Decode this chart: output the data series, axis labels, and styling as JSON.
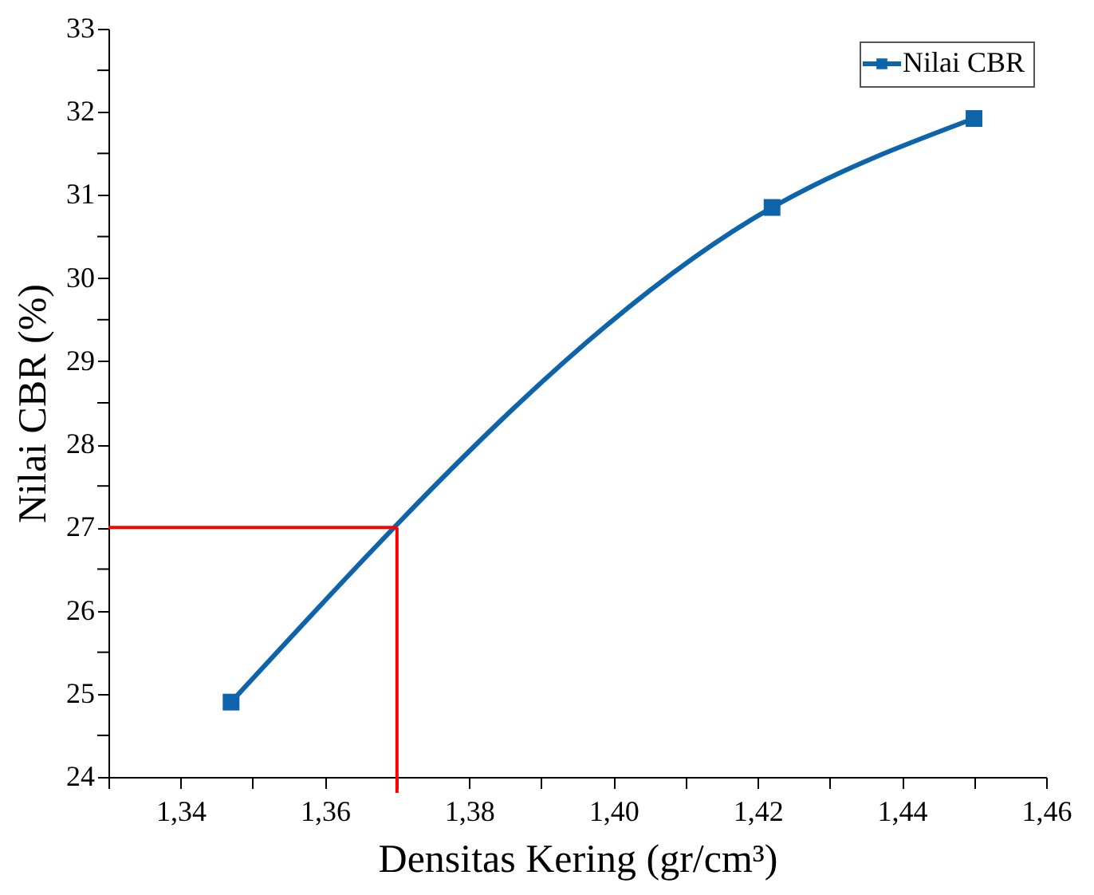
{
  "chart_data": {
    "type": "line",
    "xlabel": "Densitas Kering (gr/cm³)",
    "ylabel": "Nilai CBR (%)",
    "x": [
      1.347,
      1.422,
      1.45
    ],
    "series": [
      {
        "name": "Nilai CBR",
        "color": "#0e64aa",
        "values": [
          24.9,
          30.85,
          31.92
        ]
      }
    ],
    "xlim": [
      1.33,
      1.46
    ],
    "xticks": [
      {
        "value": 1.33,
        "label": null
      },
      {
        "value": 1.34,
        "label": "1,34"
      },
      {
        "value": 1.35,
        "label": null
      },
      {
        "value": 1.36,
        "label": "1,36"
      },
      {
        "value": 1.37,
        "label": null
      },
      {
        "value": 1.38,
        "label": "1,38"
      },
      {
        "value": 1.39,
        "label": null
      },
      {
        "value": 1.4,
        "label": "1,40"
      },
      {
        "value": 1.41,
        "label": null
      },
      {
        "value": 1.42,
        "label": "1,42"
      },
      {
        "value": 1.43,
        "label": null
      },
      {
        "value": 1.44,
        "label": "1,44"
      },
      {
        "value": 1.45,
        "label": null
      },
      {
        "value": 1.46,
        "label": "1,46"
      }
    ],
    "ylim": [
      24,
      33
    ],
    "yticks": [
      24,
      {
        "value": 24.5,
        "label": null
      },
      25,
      {
        "value": 25.5,
        "label": null
      },
      26,
      {
        "value": 26.5,
        "label": null
      },
      27,
      {
        "value": 27.5,
        "label": null
      },
      28,
      {
        "value": 28.5,
        "label": null
      },
      29,
      {
        "value": 29.5,
        "label": null
      },
      30,
      {
        "value": 30.5,
        "label": null
      },
      31,
      {
        "value": 31.5,
        "label": null
      },
      32,
      {
        "value": 32.5,
        "label": null
      },
      33
    ],
    "ref_lines": [
      {
        "axis": "y",
        "value": 27,
        "color": "#ff0000"
      },
      {
        "axis": "x",
        "value": 1.37,
        "color": "#ff0000"
      }
    ],
    "marker": "square",
    "line_style": "solid",
    "grid": false,
    "legend": "top right"
  }
}
